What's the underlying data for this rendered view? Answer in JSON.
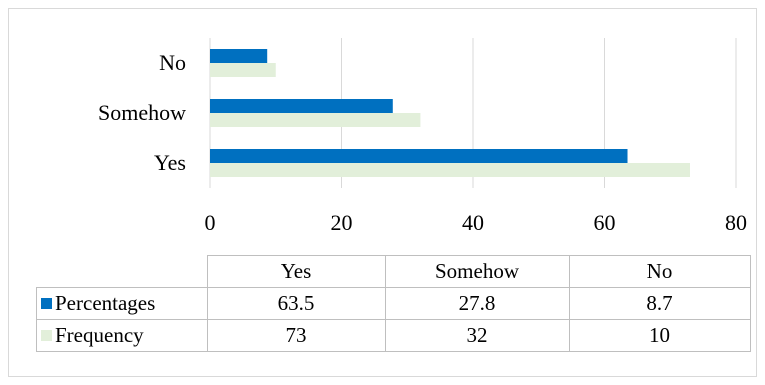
{
  "chart_data": {
    "type": "bar",
    "orientation": "horizontal",
    "categories": [
      "No",
      "Somehow",
      "Yes"
    ],
    "series": [
      {
        "name": "Percentages",
        "color": "#0070c0",
        "values": [
          8.7,
          27.8,
          63.5
        ]
      },
      {
        "name": "Frequency",
        "color": "#e2efda",
        "values": [
          10,
          32,
          73
        ]
      }
    ],
    "xlim": [
      0,
      80
    ],
    "xticks": [
      0,
      20,
      40,
      60,
      80
    ],
    "grid": true,
    "legend": "data-table-bottom",
    "table": {
      "columns": [
        "Yes",
        "Somehow",
        "No"
      ],
      "rows": [
        {
          "name": "Percentages",
          "color": "#0070c0",
          "values": [
            "63.5",
            "27.8",
            "8.7"
          ]
        },
        {
          "name": "Frequency",
          "color": "#e2efda",
          "values": [
            "73",
            "32",
            "10"
          ]
        }
      ]
    }
  }
}
